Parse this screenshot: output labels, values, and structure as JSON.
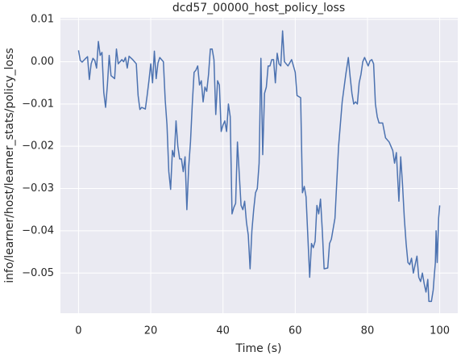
{
  "chart_data": {
    "type": "line",
    "title": "dcd57_00000_host_policy_loss",
    "xlabel": "Time (s)",
    "ylabel": "info/learner/host/learner_stats/policy_loss",
    "grid": true,
    "xlim": [
      -5,
      105
    ],
    "ylim": [
      -0.0595,
      0.0104
    ],
    "xticks": [
      0,
      20,
      40,
      60,
      80,
      100
    ],
    "yticks": [
      {
        "value": 0.01,
        "label": "0.01"
      },
      {
        "value": 0,
        "label": "0.00"
      },
      {
        "value": -0.01,
        "label": "−0.01"
      },
      {
        "value": -0.02,
        "label": "−0.02"
      },
      {
        "value": -0.03,
        "label": "−0.03"
      },
      {
        "value": -0.04,
        "label": "−0.04"
      },
      {
        "value": -0.05,
        "label": "−0.05"
      }
    ],
    "series": [
      {
        "color": "#4c72b0",
        "x": [
          0,
          0.5,
          1,
          2,
          2.5,
          3,
          3.5,
          4,
          4.5,
          5,
          5.5,
          6,
          6.5,
          7,
          7.5,
          8,
          8.5,
          9,
          10,
          10.5,
          11,
          12,
          12.5,
          13,
          13.5,
          14,
          15,
          16,
          16.5,
          17,
          17.5,
          18,
          18.5,
          19,
          19.5,
          20,
          20.5,
          21,
          21.5,
          22,
          22.5,
          23,
          23.5,
          24,
          24.5,
          25,
          25.5,
          26,
          26.5,
          27,
          27.5,
          28,
          28.5,
          29,
          29.5,
          30,
          30.5,
          31,
          31.5,
          32,
          32.5,
          33,
          33.5,
          34,
          34.5,
          35,
          35.5,
          36,
          36.5,
          37,
          37.5,
          38,
          38.5,
          39,
          39.5,
          40,
          40.5,
          41,
          41.5,
          42,
          42.5,
          43,
          43.5,
          44,
          44.5,
          45,
          45.5,
          46,
          46.5,
          47,
          47.5,
          48,
          48.5,
          49,
          49.5,
          50,
          50.5,
          51,
          51.5,
          52,
          52.5,
          53,
          53.5,
          54,
          54.5,
          55,
          55.5,
          56,
          56.5,
          57,
          58,
          59,
          60,
          60.5,
          61.5,
          62,
          62.5,
          63,
          64,
          64.5,
          65,
          65.5,
          66,
          66.5,
          67,
          67.5,
          68,
          69,
          69.5,
          70,
          71,
          72,
          73,
          74,
          74.7,
          75.2,
          75.7,
          76.2,
          76.7,
          77.2,
          77.7,
          78.2,
          78.7,
          79.2,
          79.7,
          80.2,
          80.7,
          81.2,
          81.7,
          82.2,
          82.7,
          83.2,
          84.2,
          85,
          86,
          87,
          87.5,
          88,
          88.7,
          89.2,
          89.7,
          90.2,
          90.7,
          91.2,
          91.7,
          92.2,
          92.7,
          93.2,
          93.7,
          94.2,
          94.7,
          95.2,
          95.7,
          96.2,
          96.7,
          97,
          97.7,
          98.2,
          98.5,
          98.8,
          99,
          99.3,
          99.7,
          100
        ],
        "values": [
          0.0027,
          0.0003,
          -0.0001,
          0.0008,
          0.0012,
          -0.0042,
          -0.0005,
          0.0008,
          0.0003,
          -0.0015,
          0.0048,
          0.0015,
          0.0022,
          -0.0073,
          -0.0108,
          -0.0055,
          0.0015,
          -0.0033,
          -0.004,
          0.003,
          -0.0005,
          0.0005,
          0,
          0.001,
          -0.0015,
          0.0013,
          0.0005,
          -0.0005,
          -0.008,
          -0.0113,
          -0.0108,
          -0.011,
          -0.0112,
          -0.008,
          -0.0045,
          -0.0005,
          -0.005,
          0.0025,
          -0.004,
          -0.0003,
          0.001,
          0.0005,
          0,
          -0.009,
          -0.015,
          -0.026,
          -0.0302,
          -0.021,
          -0.0225,
          -0.014,
          -0.02,
          -0.023,
          -0.023,
          -0.026,
          -0.0225,
          -0.035,
          -0.025,
          -0.019,
          -0.01,
          -0.0025,
          -0.002,
          -0.001,
          -0.0055,
          -0.0045,
          -0.0095,
          -0.006,
          -0.007,
          -0.003,
          0.003,
          0.003,
          0.0005,
          -0.0125,
          -0.0045,
          -0.0055,
          -0.0165,
          -0.015,
          -0.014,
          -0.0165,
          -0.01,
          -0.013,
          -0.036,
          -0.0345,
          -0.0335,
          -0.019,
          -0.0265,
          -0.034,
          -0.035,
          -0.033,
          -0.038,
          -0.041,
          -0.049,
          -0.04,
          -0.035,
          -0.031,
          -0.03,
          -0.024,
          0.0008,
          -0.022,
          -0.0075,
          -0.006,
          -0.001,
          -0.001,
          0.0005,
          0.0005,
          -0.005,
          0.002,
          -0.0005,
          -0.001,
          0.0073,
          0,
          -0.001,
          0.0005,
          -0.0025,
          -0.008,
          -0.0085,
          -0.031,
          -0.0295,
          -0.032,
          -0.051,
          -0.043,
          -0.044,
          -0.0425,
          -0.034,
          -0.036,
          -0.0325,
          -0.04,
          -0.049,
          -0.0488,
          -0.043,
          -0.042,
          -0.037,
          -0.02,
          -0.0095,
          -0.003,
          0.001,
          -0.0035,
          -0.0075,
          -0.01,
          -0.0095,
          -0.01,
          -0.005,
          -0.003,
          0,
          0.001,
          0,
          -0.001,
          0.0002,
          0.0005,
          -0.0005,
          -0.01,
          -0.013,
          -0.0145,
          -0.0145,
          -0.018,
          -0.019,
          -0.021,
          -0.024,
          -0.0215,
          -0.033,
          -0.0225,
          -0.029,
          -0.037,
          -0.043,
          -0.0475,
          -0.048,
          -0.0465,
          -0.05,
          -0.048,
          -0.046,
          -0.051,
          -0.052,
          -0.05,
          -0.0525,
          -0.0545,
          -0.0515,
          -0.0567,
          -0.0567,
          -0.054,
          -0.0505,
          -0.0475,
          -0.04,
          -0.0475,
          -0.037,
          -0.034
        ]
      }
    ]
  }
}
